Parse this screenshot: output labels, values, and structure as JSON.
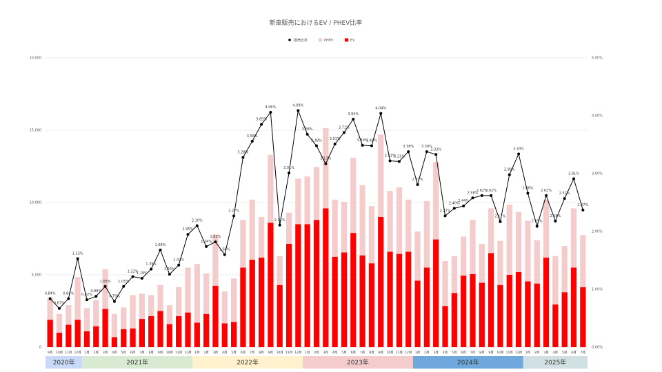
{
  "chart_data": {
    "type": "bar",
    "title": "新車販売におけるEV / PHEV比率",
    "legend": {
      "placement": "top-center",
      "items": [
        {
          "name": "販売比率",
          "kind": "line",
          "color": "#000000"
        },
        {
          "name": "PHEV",
          "kind": "bar",
          "color": "#f4cccc"
        },
        {
          "name": "EV",
          "kind": "bar",
          "color": "#ff0000"
        }
      ]
    },
    "y_left": {
      "min": 0,
      "max": 20000,
      "ticks": [
        "0",
        "5,000",
        "10,000",
        "15,000",
        "20,000"
      ],
      "tick_values": [
        0,
        5000,
        10000,
        15000,
        20000
      ]
    },
    "y_right": {
      "min": 0,
      "max": 5,
      "ticks": [
        "0.00%",
        "1.00%",
        "2.00%",
        "3.00%",
        "4.00%",
        "5.00%"
      ],
      "tick_values": [
        0,
        1,
        2,
        3,
        4,
        5
      ]
    },
    "grid": true,
    "stacked": true,
    "categories": [
      "9月",
      "10月",
      "11月",
      "12月",
      "1月",
      "2月",
      "3月",
      "4月",
      "5月",
      "6月",
      "7月",
      "8月",
      "9月",
      "10月",
      "11月",
      "12月",
      "1月",
      "2月",
      "3月",
      "4月",
      "5月",
      "6月",
      "7月",
      "8月",
      "9月",
      "10月",
      "11月",
      "12月",
      "1月",
      "2月",
      "3月",
      "4月",
      "5月",
      "6月",
      "7月",
      "8月",
      "9月",
      "10月",
      "11月",
      "12月",
      "1月",
      "2月",
      "3月",
      "4月",
      "5月",
      "6月",
      "7月",
      "8月",
      "9月",
      "10月",
      "11月",
      "12月",
      "1月",
      "2月",
      "3月",
      "4月",
      "5月",
      "6月",
      "7月"
    ],
    "series": [
      {
        "name": "EV",
        "color": "#ff0000",
        "values": [
          1900,
          1000,
          1550,
          1900,
          1100,
          1450,
          2650,
          700,
          1250,
          1300,
          1950,
          2150,
          2500,
          1600,
          2150,
          2400,
          1700,
          2300,
          4250,
          1650,
          1750,
          5500,
          6050,
          6200,
          8600,
          4300,
          7150,
          8500,
          8500,
          8800,
          9600,
          6250,
          6550,
          7900,
          6350,
          5800,
          9000,
          6600,
          6450,
          6600,
          4600,
          5500,
          7450,
          2850,
          3750,
          4950,
          5050,
          4450,
          6500,
          4300,
          5000,
          5200,
          4550,
          4400,
          6200,
          2950,
          3800,
          5500,
          4150
        ]
      },
      {
        "name": "PHEV",
        "color": "#f4cccc",
        "values": [
          1500,
          1300,
          1350,
          2950,
          1600,
          1800,
          2750,
          1600,
          1500,
          2300,
          1750,
          1450,
          1800,
          1300,
          2000,
          3100,
          4050,
          2800,
          3550,
          2200,
          3000,
          3300,
          4150,
          2800,
          4700,
          2000,
          2150,
          3150,
          3300,
          3650,
          5550,
          3950,
          3500,
          5200,
          4850,
          3950,
          5700,
          4200,
          4600,
          3600,
          3400,
          4600,
          5350,
          3100,
          2550,
          2700,
          3750,
          2700,
          3100,
          3050,
          4850,
          4150,
          4200,
          3000,
          4000,
          3350,
          3200,
          4100,
          3600
        ]
      },
      {
        "name": "販売比率",
        "axis": "right",
        "values": [
          0.84,
          0.67,
          0.84,
          1.53,
          0.82,
          0.88,
          1.05,
          0.79,
          1.05,
          1.22,
          1.19,
          1.35,
          1.68,
          1.26,
          1.42,
          1.95,
          2.1,
          1.74,
          1.82,
          1.6,
          2.27,
          3.28,
          3.56,
          3.85,
          4.06,
          2.11,
          3.01,
          4.09,
          3.68,
          3.48,
          3.17,
          3.51,
          3.71,
          3.94,
          3.49,
          3.48,
          4.04,
          3.22,
          3.21,
          3.38,
          2.81,
          3.38,
          3.33,
          2.27,
          2.4,
          2.44,
          2.58,
          2.62,
          2.62,
          2.17,
          2.98,
          3.34,
          2.66,
          2.09,
          2.62,
          2.18,
          2.57,
          2.91,
          2.37
        ]
      }
    ],
    "rate_labels": [
      "0.84%",
      "0.67%",
      "0.84%",
      "1.53%",
      "0.82%",
      "0.88%",
      "1.05%",
      "0.79%",
      "1.05%",
      "1.22%",
      "1.19%",
      "1.35%",
      "1.68%",
      "1.26%",
      "1.42%",
      "1.95%",
      "2.10%",
      "1.74%",
      "1.82%",
      "1.60%",
      "2.27%",
      "3.28%",
      "3.56%",
      "3.85%",
      "4.06%",
      "2.11%",
      "3.01%",
      "4.09%",
      "3.68%",
      "3.48%",
      "3.17%",
      "3.51%",
      "3.71%",
      "3.94%",
      "3.49%",
      "3.48%",
      "4.04%",
      "3.22%",
      "3.21%",
      "3.38%",
      "2.81%",
      "3.38%",
      "3.33%",
      "2.27%",
      "2.40%",
      "2.44%",
      "2.58%",
      "2.62%",
      "2.62%",
      "2.17%",
      "2.98%",
      "3.34%",
      "2.66%",
      "2.09%",
      "2.62%",
      "2.18%",
      "2.57%",
      "2.91%",
      "2.37%"
    ],
    "year_bands": [
      {
        "label": "2020年",
        "start": 0,
        "count": 4,
        "color": "#c9daf8"
      },
      {
        "label": "2021年",
        "start": 4,
        "count": 12,
        "color": "#d9ead3"
      },
      {
        "label": "2022年",
        "start": 16,
        "count": 12,
        "color": "#fff2cc"
      },
      {
        "label": "2023年",
        "start": 28,
        "count": 12,
        "color": "#f4cccc"
      },
      {
        "label": "2024年",
        "start": 40,
        "count": 12,
        "color": "#6fa8dc"
      },
      {
        "label": "2025年",
        "start": 52,
        "count": 7,
        "color": "#d0e0e3"
      }
    ]
  }
}
